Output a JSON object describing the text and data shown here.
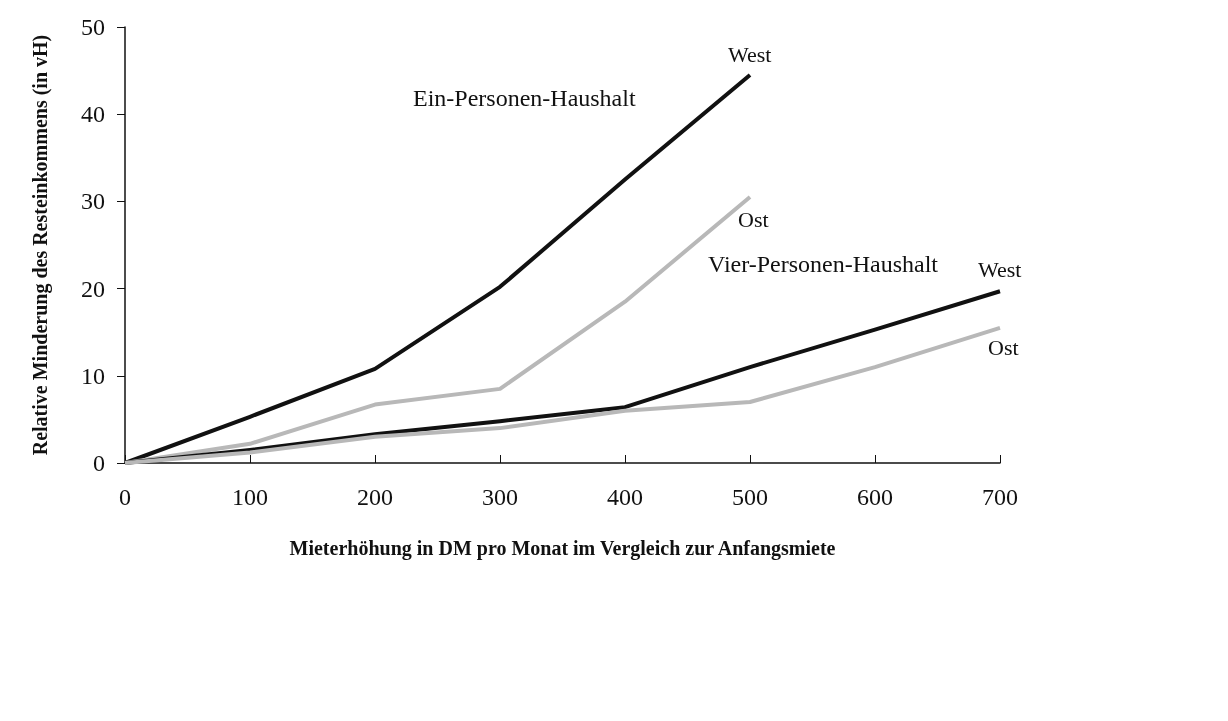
{
  "chart_data": {
    "type": "line",
    "xlabel": "Mieterhöhung in DM pro Monat im Vergleich zur Anfangsmiete",
    "ylabel": "Relative Minderung des Resteinkommens (in vH)",
    "x": [
      0,
      100,
      200,
      300,
      400,
      500,
      600,
      700
    ],
    "series": [
      {
        "name": "West",
        "color": "#111111",
        "values": [
          0,
          5.3,
          10.8,
          20.2,
          32.5,
          44.5,
          null,
          null
        ]
      },
      {
        "name": "Ost",
        "color": "#b8b8b8",
        "values": [
          0,
          2.2,
          6.7,
          8.5,
          18.5,
          30.5,
          null,
          null
        ]
      },
      {
        "name": "West",
        "color": "#111111",
        "values": [
          0,
          1.5,
          3.3,
          4.8,
          6.4,
          11,
          15.3,
          19.7
        ]
      },
      {
        "name": "Ost",
        "color": "#b8b8b8",
        "values": [
          0,
          1.2,
          3,
          4,
          6,
          7,
          11,
          15.5
        ]
      }
    ],
    "annotations": [
      "Ein-Personen-Haushalt",
      "Vier-Personen-Haushalt"
    ],
    "xlim": [
      0,
      700
    ],
    "xticks": [
      0,
      100,
      200,
      300,
      400,
      500,
      600,
      700
    ],
    "ylim": [
      0,
      50
    ],
    "yticks": [
      0,
      10,
      20,
      30,
      40,
      50
    ],
    "grid": false,
    "legend": false,
    "marker": "none",
    "line_style": "solid"
  }
}
